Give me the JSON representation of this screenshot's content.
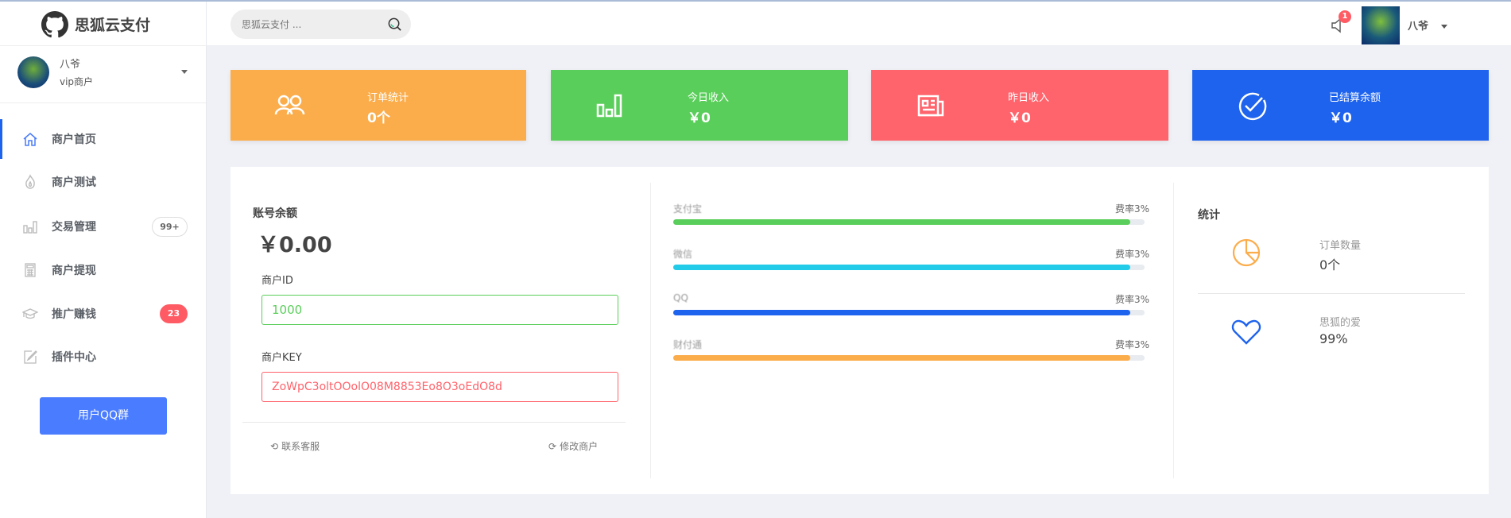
{
  "app": {
    "title": "思狐云支付"
  },
  "search": {
    "placeholder": "思狐云支付 ..."
  },
  "header": {
    "notification_count": "1",
    "username": "八爷"
  },
  "user": {
    "name": "八爷",
    "role": "vip商户"
  },
  "sidebar": {
    "items": [
      {
        "label": "商户首页",
        "icon": "home-icon",
        "active": true
      },
      {
        "label": "商户测试",
        "icon": "fire-icon"
      },
      {
        "label": "交易管理",
        "icon": "bar-chart-icon",
        "badge": "99+"
      },
      {
        "label": "商户提现",
        "icon": "calculator-icon"
      },
      {
        "label": "推广赚钱",
        "icon": "graduation-cap-icon",
        "badge": "23"
      },
      {
        "label": "插件中心",
        "icon": "edit-icon"
      }
    ],
    "button": "用户QQ群"
  },
  "cards": [
    {
      "title": "订单统计",
      "value": "0个",
      "color": "#fbad4c",
      "icon": "users-icon"
    },
    {
      "title": "今日收入",
      "value": "￥0",
      "color": "#5ace5a",
      "icon": "bar-chart-icon"
    },
    {
      "title": "昨日收入",
      "value": "￥0",
      "color": "#ff636b",
      "icon": "newspaper-icon"
    },
    {
      "title": "已结算余额",
      "value": "￥0",
      "color": "#1e63ee",
      "icon": "check-circle-icon"
    }
  ],
  "account": {
    "balance_label": "账号余额",
    "balance": "￥0.00",
    "id_label": "商户ID",
    "id": "1000",
    "key_label": "商户KEY",
    "key": "ZoWpC3oltOOolO08M8853Eo8O3oEdO8d",
    "contact": "联系客服",
    "modify": "修改商户"
  },
  "channels": [
    {
      "name": "支付宝",
      "rate": "费率3%",
      "percent": 97,
      "color": "#5ace5a"
    },
    {
      "name": "微信",
      "rate": "费率3%",
      "percent": 97,
      "color": "#22cce9"
    },
    {
      "name": "QQ",
      "rate": "费率3%",
      "percent": 97,
      "color": "#1e63ee"
    },
    {
      "name": "财付通",
      "rate": "费率3%",
      "percent": 97,
      "color": "#fbad4c"
    }
  ],
  "stats": {
    "title": "统计",
    "items": [
      {
        "label": "订单数量",
        "value": "0个",
        "icon": "pie-chart-icon",
        "color": "#fbad4c"
      },
      {
        "label": "思狐的爱",
        "value": "99%",
        "icon": "heart-icon",
        "color": "#1e63ee"
      }
    ]
  }
}
